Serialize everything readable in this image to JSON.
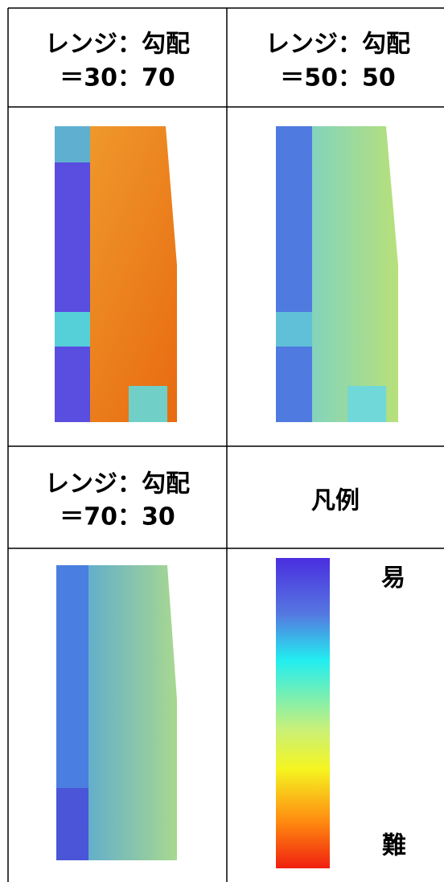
{
  "table": {
    "rows": [
      [
        {
          "line1": "レンジ：勾配",
          "line2": "＝30：70"
        },
        {
          "line1": "レンジ：勾配",
          "line2": "＝50：50"
        }
      ],
      [
        {
          "line1": "レンジ：勾配",
          "line2": "＝70：30"
        },
        {
          "title": "凡例",
          "easy": "易",
          "hard": "難"
        }
      ]
    ]
  }
}
